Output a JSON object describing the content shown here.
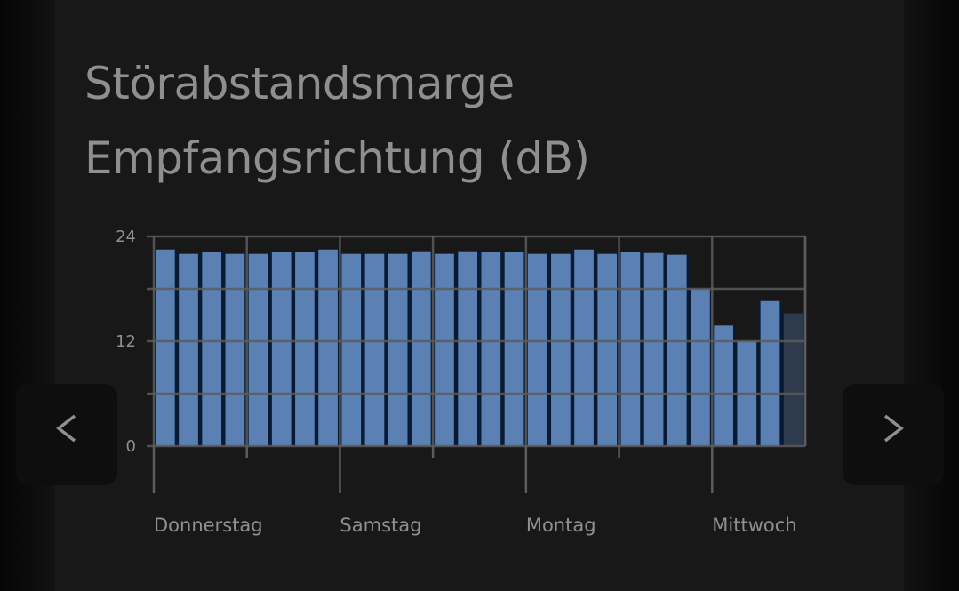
{
  "title": "Störabstandsmarge\nEmpfangsrichtung (dB)",
  "nav": {
    "prev_icon": "chevron-left-icon",
    "next_icon": "chevron-right-icon"
  },
  "colors": {
    "bar": "#5a80b4",
    "bar_dim": "#2e3a4e",
    "gap": "#0a1a33",
    "grid": "#5c5c5c",
    "text": "#8f8f8f"
  },
  "chart_data": {
    "type": "bar",
    "title": "Störabstandsmarge Empfangsrichtung (dB)",
    "ylabel": "dB",
    "ylim": [
      0,
      24
    ],
    "yticks": [
      0,
      12,
      24
    ],
    "ygrid": [
      0,
      6,
      12,
      18,
      24
    ],
    "xlabels": [
      {
        "label": "Donnerstag",
        "bar_index": 0
      },
      {
        "label": "Samstag",
        "bar_index": 8
      },
      {
        "label": "Montag",
        "bar_index": 16
      },
      {
        "label": "Mittwoch",
        "bar_index": 24
      }
    ],
    "values": [
      22.5,
      22.0,
      22.2,
      22.0,
      22.0,
      22.2,
      22.2,
      22.5,
      22.0,
      22.0,
      22.0,
      22.3,
      22.0,
      22.3,
      22.2,
      22.2,
      22.0,
      22.0,
      22.5,
      22.0,
      22.2,
      22.1,
      21.9,
      18.0,
      13.8,
      12.0,
      16.6,
      15.2
    ],
    "dimmed_last": true,
    "grid": true,
    "legend": "none"
  }
}
